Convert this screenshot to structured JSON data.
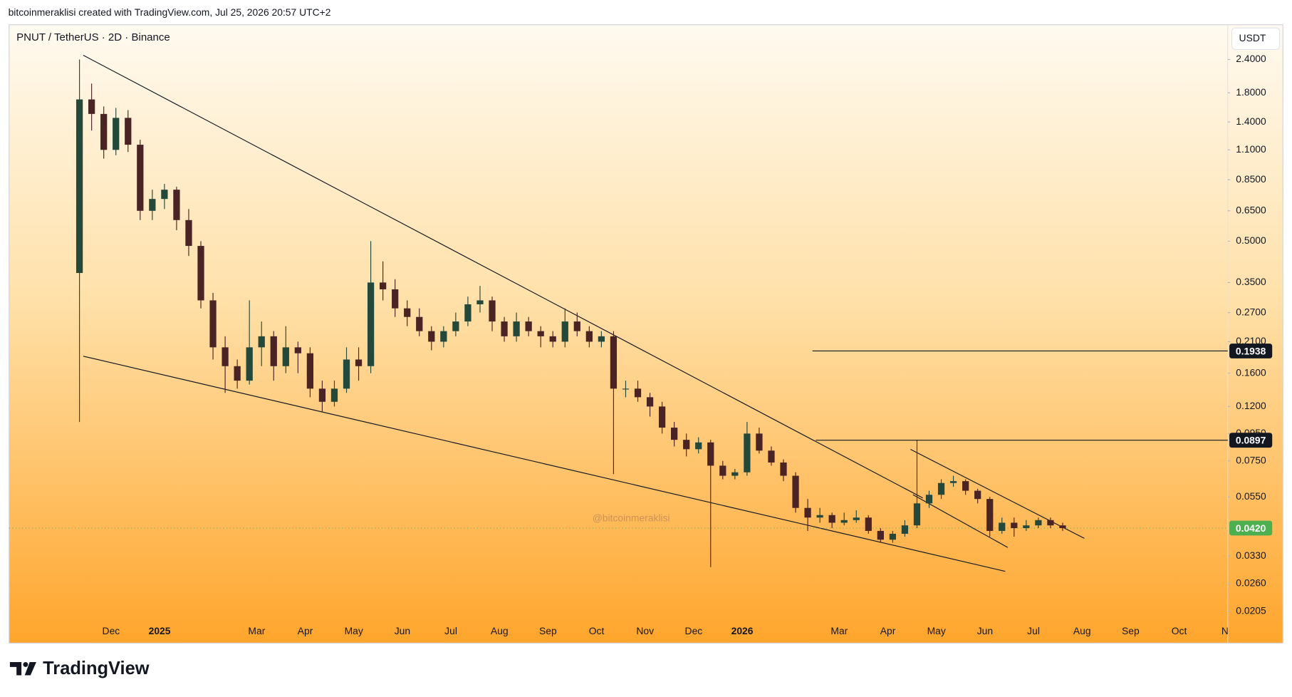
{
  "chart_data": {
    "type": "candlestick",
    "header": "bitcoinmeraklisi created with TradingView.com, Jul 25, 2026 20:57 UTC+2",
    "title": "PNUT / TetherUS · 2D · Binance",
    "currency": "USDT",
    "watermark": "@bitcoinmeraklisi",
    "brand": "TradingView",
    "log_scale": true,
    "grid": false,
    "up_color": "#24483a",
    "down_color": "#4a2424",
    "xlim": [
      -2.1,
      23.0
    ],
    "xticks": [
      {
        "value": 0,
        "label": "Dec"
      },
      {
        "value": 1,
        "label": "2025"
      },
      {
        "value": 3,
        "label": "Mar"
      },
      {
        "value": 4,
        "label": "Apr"
      },
      {
        "value": 5,
        "label": "May"
      },
      {
        "value": 6,
        "label": "Jun"
      },
      {
        "value": 7,
        "label": "Jul"
      },
      {
        "value": 8,
        "label": "Aug"
      },
      {
        "value": 9,
        "label": "Sep"
      },
      {
        "value": 10,
        "label": "Oct"
      },
      {
        "value": 11,
        "label": "Nov"
      },
      {
        "value": 12,
        "label": "Dec"
      },
      {
        "value": 13,
        "label": "2026"
      },
      {
        "value": 15,
        "label": "Mar"
      },
      {
        "value": 16,
        "label": "Apr"
      },
      {
        "value": 17,
        "label": "May"
      },
      {
        "value": 18,
        "label": "Jun"
      },
      {
        "value": 19,
        "label": "Jul"
      },
      {
        "value": 20,
        "label": "Aug"
      },
      {
        "value": 21,
        "label": "Sep"
      },
      {
        "value": 22,
        "label": "Oct"
      },
      {
        "value": 23,
        "label": "No"
      }
    ],
    "ylim": [
      0.019,
      3.24
    ],
    "yticks": [
      {
        "value": 2.4,
        "label": "2.4000"
      },
      {
        "value": 1.8,
        "label": "1.8000"
      },
      {
        "value": 1.4,
        "label": "1.4000"
      },
      {
        "value": 1.1,
        "label": "1.1000"
      },
      {
        "value": 0.85,
        "label": "0.8500"
      },
      {
        "value": 0.65,
        "label": "0.6500"
      },
      {
        "value": 0.5,
        "label": "0.5000"
      },
      {
        "value": 0.35,
        "label": "0.3500"
      },
      {
        "value": 0.27,
        "label": "0.2700"
      },
      {
        "value": 0.21,
        "label": "0.2100"
      },
      {
        "value": 0.16,
        "label": "0.1600"
      },
      {
        "value": 0.12,
        "label": "0.1200"
      },
      {
        "value": 0.095,
        "label": "0.0950"
      },
      {
        "value": 0.075,
        "label": "0.0750"
      },
      {
        "value": 0.055,
        "label": "0.0550"
      },
      {
        "value": 0.033,
        "label": "0.0330"
      },
      {
        "value": 0.026,
        "label": "0.0260"
      },
      {
        "value": 0.0205,
        "label": "0.0205"
      }
    ],
    "horizontal_lines": [
      0.1938,
      0.0897
    ],
    "line_label_color": "#131722",
    "last_price": {
      "value": 0.042,
      "label": "0.0420"
    },
    "last_price_color": "#4caf50",
    "x": [
      -0.65,
      -0.4,
      -0.15,
      0.1,
      0.35,
      0.6,
      0.85,
      1.1,
      1.35,
      1.6,
      1.85,
      2.1,
      2.35,
      2.6,
      2.85,
      3.1,
      3.35,
      3.6,
      3.85,
      4.1,
      4.35,
      4.6,
      4.85,
      5.1,
      5.35,
      5.6,
      5.85,
      6.1,
      6.35,
      6.6,
      6.85,
      7.1,
      7.35,
      7.6,
      7.85,
      8.1,
      8.35,
      8.6,
      8.85,
      9.1,
      9.35,
      9.6,
      9.85,
      10.1,
      10.35,
      10.6,
      10.85,
      11.1,
      11.35,
      11.6,
      11.85,
      12.1,
      12.35,
      12.6,
      12.85,
      13.1,
      13.35,
      13.6,
      13.85,
      14.1,
      14.35,
      14.6,
      14.85,
      15.1,
      15.35,
      15.6,
      15.85,
      16.1,
      16.35,
      16.6,
      16.85,
      17.1,
      17.35,
      17.6,
      17.85,
      18.1,
      18.35,
      18.6,
      18.85,
      19.1,
      19.35,
      19.6
    ],
    "open": [
      0.38,
      1.7,
      1.5,
      1.1,
      1.45,
      1.15,
      0.65,
      0.72,
      0.78,
      0.6,
      0.48,
      0.3,
      0.2,
      0.17,
      0.15,
      0.2,
      0.22,
      0.17,
      0.2,
      0.19,
      0.14,
      0.125,
      0.14,
      0.18,
      0.17,
      0.35,
      0.33,
      0.28,
      0.26,
      0.23,
      0.21,
      0.23,
      0.25,
      0.29,
      0.3,
      0.25,
      0.22,
      0.25,
      0.23,
      0.22,
      0.21,
      0.25,
      0.23,
      0.21,
      0.22,
      0.14,
      0.14,
      0.13,
      0.12,
      0.1,
      0.09,
      0.083,
      0.088,
      0.072,
      0.066,
      0.068,
      0.095,
      0.082,
      0.074,
      0.066,
      0.05,
      0.046,
      0.047,
      0.044,
      0.045,
      0.046,
      0.041,
      0.038,
      0.04,
      0.043,
      0.052,
      0.056,
      0.062,
      0.063,
      0.058,
      0.054,
      0.041,
      0.044,
      0.042,
      0.043,
      0.045,
      0.043
    ],
    "high": [
      2.4,
      1.95,
      1.6,
      1.58,
      1.55,
      1.2,
      0.78,
      0.82,
      0.8,
      0.66,
      0.5,
      0.32,
      0.22,
      0.18,
      0.3,
      0.25,
      0.23,
      0.24,
      0.21,
      0.2,
      0.15,
      0.15,
      0.2,
      0.2,
      0.5,
      0.42,
      0.36,
      0.3,
      0.28,
      0.24,
      0.24,
      0.27,
      0.31,
      0.34,
      0.31,
      0.26,
      0.27,
      0.26,
      0.24,
      0.23,
      0.28,
      0.27,
      0.24,
      0.23,
      0.23,
      0.15,
      0.15,
      0.135,
      0.125,
      0.105,
      0.095,
      0.092,
      0.09,
      0.075,
      0.07,
      0.105,
      0.1,
      0.085,
      0.076,
      0.068,
      0.054,
      0.05,
      0.048,
      0.048,
      0.049,
      0.047,
      0.042,
      0.041,
      0.045,
      0.09,
      0.058,
      0.064,
      0.066,
      0.064,
      0.059,
      0.055,
      0.046,
      0.046,
      0.045,
      0.046,
      0.046,
      0.044
    ],
    "low": [
      0.105,
      1.3,
      1.02,
      1.05,
      1.08,
      0.6,
      0.6,
      0.66,
      0.55,
      0.44,
      0.28,
      0.18,
      0.135,
      0.14,
      0.145,
      0.17,
      0.15,
      0.16,
      0.16,
      0.13,
      0.115,
      0.12,
      0.135,
      0.15,
      0.16,
      0.3,
      0.26,
      0.24,
      0.22,
      0.195,
      0.2,
      0.22,
      0.24,
      0.27,
      0.23,
      0.21,
      0.21,
      0.22,
      0.2,
      0.2,
      0.2,
      0.22,
      0.2,
      0.2,
      0.067,
      0.13,
      0.125,
      0.11,
      0.095,
      0.085,
      0.078,
      0.08,
      0.03,
      0.064,
      0.064,
      0.066,
      0.08,
      0.072,
      0.063,
      0.048,
      0.041,
      0.044,
      0.042,
      0.043,
      0.044,
      0.04,
      0.037,
      0.037,
      0.039,
      0.042,
      0.05,
      0.054,
      0.06,
      0.056,
      0.052,
      0.039,
      0.04,
      0.039,
      0.041,
      0.042,
      0.042,
      0.041
    ],
    "close": [
      1.7,
      1.5,
      1.1,
      1.45,
      1.15,
      0.65,
      0.72,
      0.78,
      0.6,
      0.48,
      0.3,
      0.2,
      0.17,
      0.15,
      0.2,
      0.22,
      0.17,
      0.2,
      0.19,
      0.14,
      0.125,
      0.14,
      0.18,
      0.17,
      0.35,
      0.33,
      0.28,
      0.26,
      0.23,
      0.21,
      0.23,
      0.25,
      0.29,
      0.3,
      0.25,
      0.22,
      0.25,
      0.23,
      0.22,
      0.21,
      0.25,
      0.23,
      0.21,
      0.22,
      0.14,
      0.14,
      0.13,
      0.12,
      0.1,
      0.09,
      0.083,
      0.088,
      0.072,
      0.066,
      0.068,
      0.095,
      0.082,
      0.074,
      0.066,
      0.05,
      0.046,
      0.047,
      0.044,
      0.045,
      0.046,
      0.041,
      0.038,
      0.04,
      0.043,
      0.052,
      0.056,
      0.062,
      0.063,
      0.058,
      0.054,
      0.041,
      0.044,
      0.042,
      0.043,
      0.045,
      0.043,
      0.042
    ]
  }
}
